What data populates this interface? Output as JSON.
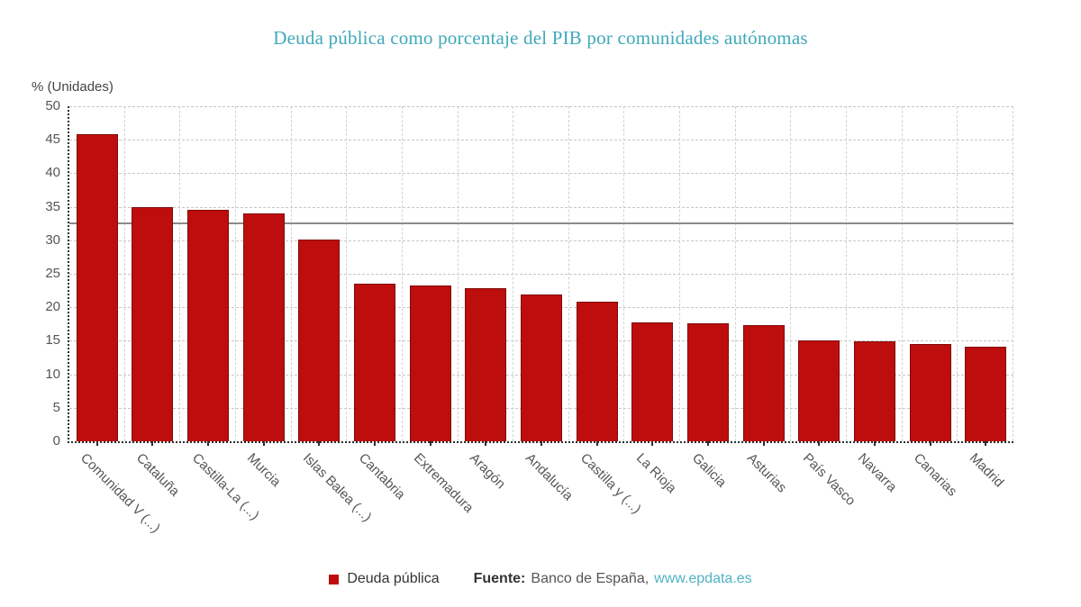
{
  "title": "Deuda pública como porcentaje del PIB por comunidades autónomas",
  "y_axis_unit_label": "% (Unidades)",
  "legend": {
    "label": "Deuda pública"
  },
  "footer": {
    "source_label": "Fuente:",
    "source_text": "Banco de España,",
    "link_text": "www.epdata.es"
  },
  "colors": {
    "title": "#3FA9BA",
    "bar": "#BE0D0D",
    "bar_border": "#7E0A0A",
    "link": "#4FB3C4",
    "reference_line": "#8A8A8A",
    "axis_text": "#555555"
  },
  "chart_data": {
    "type": "bar",
    "title": "Deuda pública como porcentaje del PIB por comunidades autónomas",
    "ylabel": "% (Unidades)",
    "xlabel": "",
    "ylim": [
      0,
      50
    ],
    "ytick_step": 5,
    "grid": true,
    "legend_position": "bottom",
    "series_name": "Deuda pública",
    "reference_line_y": 32.5,
    "categories": [
      "Comunidad V (...)",
      "Cataluña",
      "Castilla-La (...)",
      "Murcia",
      "Islas Balea (...)",
      "Cantabria",
      "Extremadura",
      "Aragón",
      "Andalucía",
      "Castilla y (...)",
      "La Rioja",
      "Galicia",
      "Asturias",
      "País Vasco",
      "Navarra",
      "Canarias",
      "Madrid"
    ],
    "values": [
      45.8,
      35.0,
      34.5,
      34.0,
      30.1,
      23.5,
      23.2,
      22.9,
      21.9,
      20.8,
      17.8,
      17.6,
      17.4,
      15.1,
      14.9,
      14.5,
      14.1
    ]
  }
}
